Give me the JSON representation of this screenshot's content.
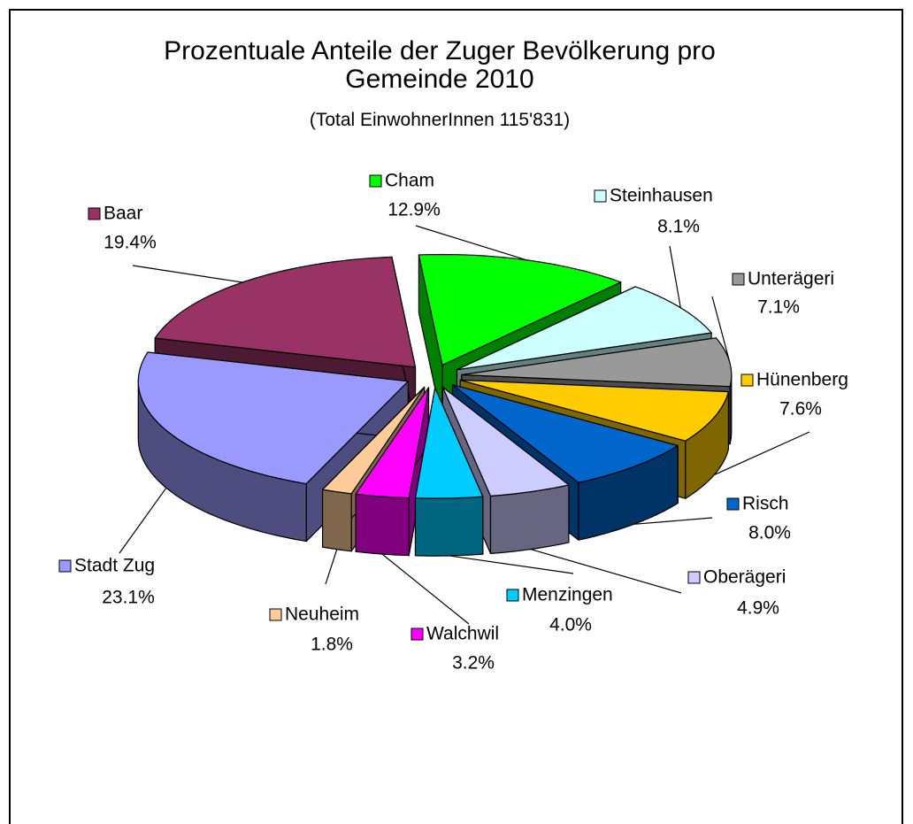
{
  "chart_data": {
    "type": "pie",
    "title": "Prozentuale Anteile der Zuger Bevölkerung pro Gemeinde 2010",
    "subtitle": "(Total  EinwohnerInnen 115'831)",
    "categories": [
      "Cham",
      "Steinhausen",
      "Unterägeri",
      "Hünenberg",
      "Risch",
      "Oberägeri",
      "Menzingen",
      "Walchwil",
      "Neuheim",
      "Stadt Zug",
      "Baar"
    ],
    "values": [
      12.9,
      8.1,
      7.1,
      7.6,
      8.0,
      4.9,
      4.0,
      3.2,
      1.8,
      23.1,
      19.4
    ],
    "value_labels": [
      "12.9%",
      "8.1%",
      "7.1%",
      "7.6%",
      "8.0%",
      "4.9%",
      "4.0%",
      "3.2%",
      "1.8%",
      "23.1%",
      "19.4%"
    ],
    "colors": [
      "#00ff00",
      "#ccffff",
      "#999999",
      "#ffcc00",
      "#0066cc",
      "#ccccff",
      "#00ccff",
      "#ff00ff",
      "#ffcc99",
      "#9999ff",
      "#993366"
    ]
  }
}
